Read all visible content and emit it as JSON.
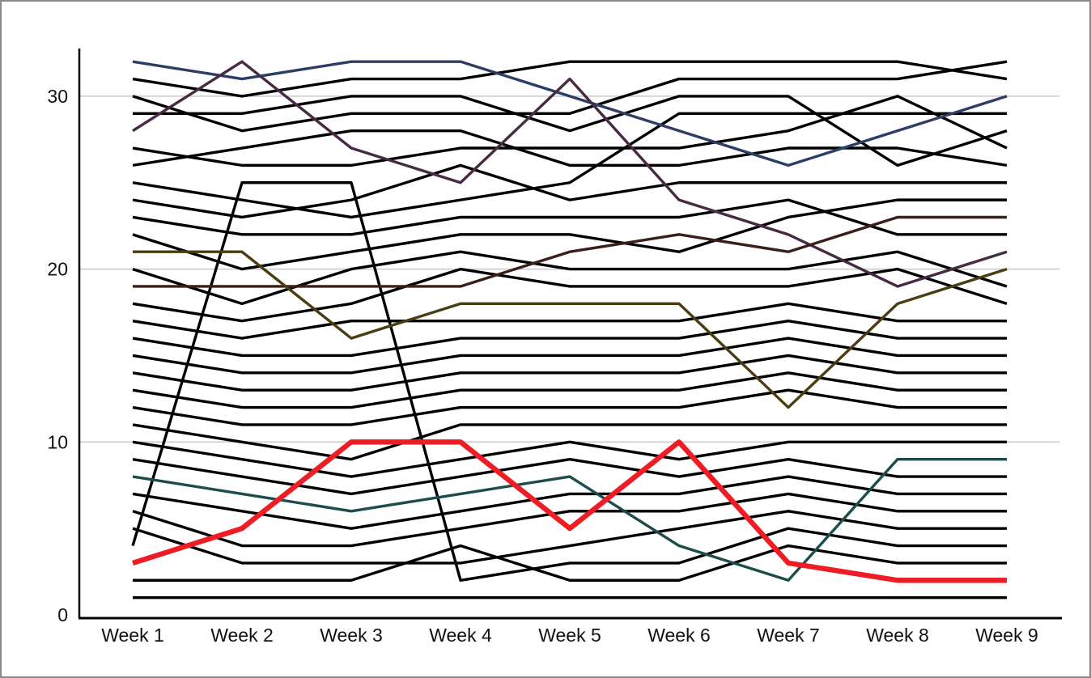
{
  "window": {
    "background": "#ffffff",
    "border_color": "#8a8a8a"
  },
  "chart_data": {
    "type": "line",
    "subtype": "bump-rank-lines",
    "title": "",
    "xlabel": "",
    "ylabel": "",
    "categories": [
      "Week 1",
      "Week 2",
      "Week 3",
      "Week 4",
      "Week 5",
      "Week 6",
      "Week 7",
      "Week 8",
      "Week 9"
    ],
    "y_ticks": [
      0,
      10,
      20,
      30
    ],
    "ylim": [
      0,
      33
    ],
    "grid": "horizontal-at-10-20-30",
    "grid_color": "#c9c9c9",
    "axis_color": "#000000",
    "tick_label_color": "#111111",
    "legend": "none",
    "highlight_color": "#ee1c24",
    "series": [
      {
        "id": "black-01",
        "color": "#000000",
        "width": 3.4,
        "values": [
          31,
          30,
          31,
          31,
          32,
          32,
          32,
          32,
          31
        ]
      },
      {
        "id": "black-02",
        "color": "#000000",
        "width": 3.4,
        "values": [
          30,
          28,
          29,
          29,
          29,
          31,
          31,
          31,
          32
        ]
      },
      {
        "id": "black-03",
        "color": "#000000",
        "width": 3.4,
        "values": [
          29,
          29,
          30,
          30,
          28,
          30,
          30,
          26,
          28
        ]
      },
      {
        "id": "black-04",
        "color": "#000000",
        "width": 3.4,
        "values": [
          27,
          26,
          26,
          27,
          27,
          27,
          28,
          30,
          27
        ]
      },
      {
        "id": "black-05",
        "color": "#000000",
        "width": 3.4,
        "values": [
          26,
          27,
          28,
          28,
          26,
          26,
          27,
          27,
          26
        ]
      },
      {
        "id": "black-06",
        "color": "#000000",
        "width": 3.4,
        "values": [
          25,
          24,
          23,
          24,
          25,
          29,
          29,
          29,
          29
        ]
      },
      {
        "id": "black-07",
        "color": "#000000",
        "width": 3.4,
        "values": [
          24,
          23,
          24,
          26,
          24,
          25,
          25,
          25,
          25
        ]
      },
      {
        "id": "black-08",
        "color": "#000000",
        "width": 3.4,
        "values": [
          23,
          22,
          22,
          23,
          23,
          23,
          24,
          22,
          22
        ]
      },
      {
        "id": "black-09",
        "color": "#000000",
        "width": 3.4,
        "values": [
          22,
          20,
          21,
          22,
          22,
          21,
          23,
          24,
          24
        ]
      },
      {
        "id": "black-10",
        "color": "#000000",
        "width": 3.4,
        "values": [
          20,
          18,
          20,
          21,
          20,
          20,
          20,
          21,
          19
        ]
      },
      {
        "id": "black-11",
        "color": "#000000",
        "width": 3.4,
        "values": [
          18,
          17,
          18,
          20,
          19,
          19,
          19,
          20,
          18
        ]
      },
      {
        "id": "black-12",
        "color": "#000000",
        "width": 3.4,
        "values": [
          17,
          16,
          17,
          17,
          17,
          17,
          18,
          17,
          17
        ]
      },
      {
        "id": "black-13",
        "color": "#000000",
        "width": 3.4,
        "values": [
          16,
          15,
          15,
          16,
          16,
          16,
          17,
          16,
          16
        ]
      },
      {
        "id": "black-14",
        "color": "#000000",
        "width": 3.4,
        "values": [
          15,
          14,
          14,
          15,
          15,
          15,
          16,
          15,
          15
        ]
      },
      {
        "id": "black-15",
        "color": "#000000",
        "width": 3.4,
        "values": [
          14,
          13,
          13,
          14,
          14,
          14,
          15,
          14,
          14
        ]
      },
      {
        "id": "black-16",
        "color": "#000000",
        "width": 3.4,
        "values": [
          13,
          12,
          12,
          13,
          13,
          13,
          14,
          13,
          13
        ]
      },
      {
        "id": "black-17",
        "color": "#000000",
        "width": 3.4,
        "values": [
          12,
          11,
          11,
          12,
          12,
          12,
          13,
          12,
          12
        ]
      },
      {
        "id": "black-18",
        "color": "#000000",
        "width": 3.4,
        "values": [
          11,
          10,
          9,
          11,
          11,
          11,
          11,
          11,
          11
        ]
      },
      {
        "id": "black-19",
        "color": "#000000",
        "width": 3.4,
        "values": [
          10,
          9,
          8,
          9,
          10,
          9,
          10,
          10,
          10
        ]
      },
      {
        "id": "black-20",
        "color": "#000000",
        "width": 3.4,
        "values": [
          9,
          8,
          7,
          8,
          9,
          8,
          9,
          8,
          8
        ]
      },
      {
        "id": "black-21",
        "color": "#000000",
        "width": 3.4,
        "values": [
          7,
          6,
          5,
          6,
          7,
          7,
          8,
          7,
          7
        ]
      },
      {
        "id": "black-22",
        "color": "#000000",
        "width": 3.4,
        "values": [
          6,
          4,
          4,
          5,
          6,
          6,
          7,
          6,
          6
        ]
      },
      {
        "id": "black-23",
        "color": "#000000",
        "width": 3.4,
        "values": [
          5,
          3,
          3,
          3,
          4,
          5,
          6,
          5,
          5
        ]
      },
      {
        "id": "black-24",
        "color": "#000000",
        "width": 3.4,
        "values": [
          4,
          25,
          25,
          2,
          3,
          3,
          5,
          4,
          4
        ]
      },
      {
        "id": "black-25",
        "color": "#000000",
        "width": 3.4,
        "values": [
          2,
          2,
          2,
          4,
          2,
          2,
          4,
          3,
          3
        ]
      },
      {
        "id": "black-26",
        "color": "#000000",
        "width": 3.4,
        "values": [
          1,
          1,
          1,
          1,
          1,
          1,
          1,
          1,
          1
        ]
      },
      {
        "id": "navy",
        "color": "#2c3e63",
        "width": 3.4,
        "values": [
          32,
          31,
          32,
          32,
          30,
          28,
          26,
          28,
          30
        ]
      },
      {
        "id": "plum",
        "color": "#472a44",
        "width": 3.4,
        "values": [
          28,
          32,
          27,
          25,
          31,
          24,
          22,
          19,
          21
        ]
      },
      {
        "id": "darkbrown",
        "color": "#3a1f18",
        "width": 3.4,
        "values": [
          19,
          19,
          19,
          19,
          21,
          22,
          21,
          23,
          23
        ]
      },
      {
        "id": "olive",
        "color": "#4a3d12",
        "width": 3.4,
        "values": [
          21,
          21,
          16,
          18,
          18,
          18,
          12,
          18,
          20
        ]
      },
      {
        "id": "teal",
        "color": "#1d4c4c",
        "width": 3.4,
        "values": [
          8,
          7,
          6,
          7,
          8,
          4,
          2,
          9,
          9
        ]
      },
      {
        "id": "highlight-red",
        "color": "#ee1c24",
        "width": 6.4,
        "values": [
          3,
          5,
          10,
          10,
          5,
          10,
          3,
          2,
          2
        ]
      }
    ]
  }
}
